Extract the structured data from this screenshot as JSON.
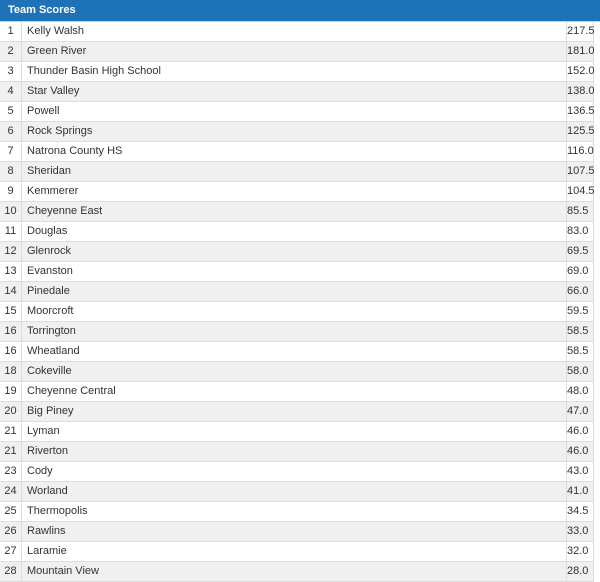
{
  "header": {
    "title": "Team Scores"
  },
  "colors": {
    "header_bg": "#1e73b8",
    "header_text": "#ffffff",
    "row_stripe": "#f0f0f0",
    "border": "#dddddd",
    "row_text": "#333333"
  },
  "table": {
    "columns": [
      "rank",
      "team",
      "score"
    ],
    "rows": [
      {
        "rank": "1",
        "team": "Kelly Walsh",
        "score": "217.5"
      },
      {
        "rank": "2",
        "team": "Green River",
        "score": "181.0"
      },
      {
        "rank": "3",
        "team": "Thunder Basin High School",
        "score": "152.0"
      },
      {
        "rank": "4",
        "team": "Star Valley",
        "score": "138.0"
      },
      {
        "rank": "5",
        "team": "Powell",
        "score": "136.5"
      },
      {
        "rank": "6",
        "team": "Rock Springs",
        "score": "125.5"
      },
      {
        "rank": "7",
        "team": "Natrona County HS",
        "score": "116.0"
      },
      {
        "rank": "8",
        "team": "Sheridan",
        "score": "107.5"
      },
      {
        "rank": "9",
        "team": "Kemmerer",
        "score": "104.5"
      },
      {
        "rank": "10",
        "team": "Cheyenne East",
        "score": "85.5"
      },
      {
        "rank": "11",
        "team": "Douglas",
        "score": "83.0"
      },
      {
        "rank": "12",
        "team": "Glenrock",
        "score": "69.5"
      },
      {
        "rank": "13",
        "team": "Evanston",
        "score": "69.0"
      },
      {
        "rank": "14",
        "team": "Pinedale",
        "score": "66.0"
      },
      {
        "rank": "15",
        "team": "Moorcroft",
        "score": "59.5"
      },
      {
        "rank": "16",
        "team": "Torrington",
        "score": "58.5"
      },
      {
        "rank": "16",
        "team": "Wheatland",
        "score": "58.5"
      },
      {
        "rank": "18",
        "team": "Cokeville",
        "score": "58.0"
      },
      {
        "rank": "19",
        "team": "Cheyenne Central",
        "score": "48.0"
      },
      {
        "rank": "20",
        "team": "Big Piney",
        "score": "47.0"
      },
      {
        "rank": "21",
        "team": "Lyman",
        "score": "46.0"
      },
      {
        "rank": "21",
        "team": "Riverton",
        "score": "46.0"
      },
      {
        "rank": "23",
        "team": "Cody",
        "score": "43.0"
      },
      {
        "rank": "24",
        "team": "Worland",
        "score": "41.0"
      },
      {
        "rank": "25",
        "team": "Thermopolis",
        "score": "34.5"
      },
      {
        "rank": "26",
        "team": "Rawlins",
        "score": "33.0"
      },
      {
        "rank": "27",
        "team": "Laramie",
        "score": "32.0"
      },
      {
        "rank": "28",
        "team": "Mountain View",
        "score": "28.0"
      }
    ]
  }
}
